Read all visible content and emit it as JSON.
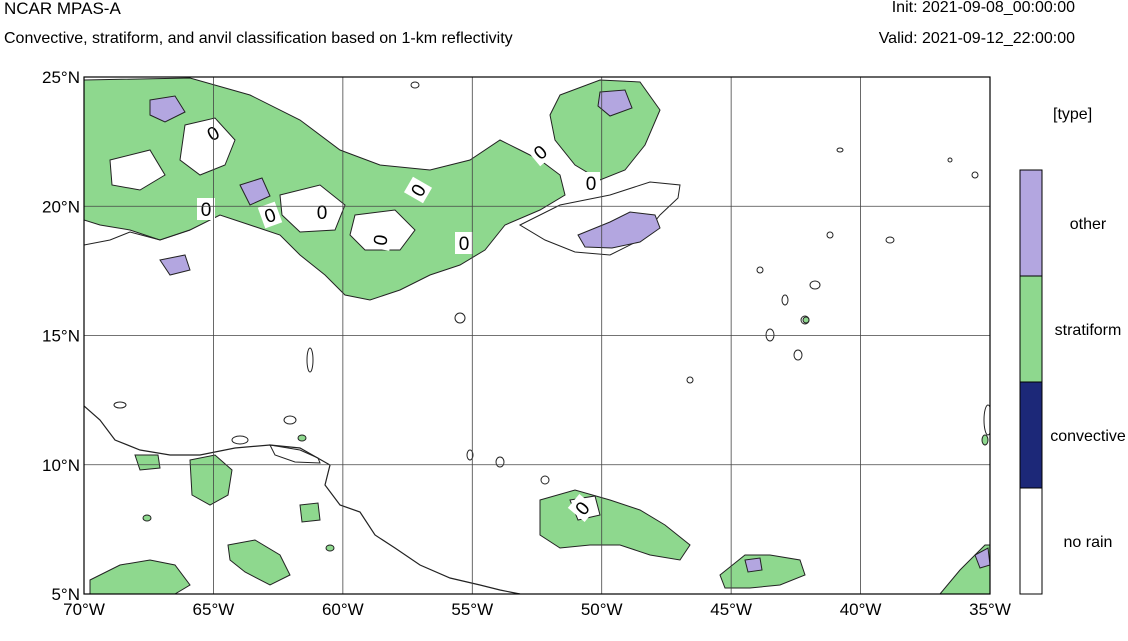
{
  "header": {
    "title": "NCAR MPAS-A",
    "subtitle": "Convective, stratiform, and anvil classification based on 1-km reflectivity",
    "init": "Init: 2021-09-08_00:00:00",
    "valid": "Valid: 2021-09-12_22:00:00"
  },
  "map": {
    "lat_labels": [
      "25°N",
      "20°N",
      "15°N",
      "10°N",
      "5°N"
    ],
    "lon_labels": [
      "70°W",
      "65°W",
      "60°W",
      "55°W",
      "50°W",
      "45°W",
      "40°W",
      "35°W"
    ],
    "lon_range": [
      -70,
      -35
    ],
    "lat_range": [
      5,
      25
    ],
    "gridlines": true,
    "contour_label": "0"
  },
  "legend": {
    "title": "[type]",
    "items": [
      {
        "label": "other",
        "color": "#b3a6e0"
      },
      {
        "label": "stratiform",
        "color": "#8ed88e"
      },
      {
        "label": "convective",
        "color": "#1c2878"
      },
      {
        "label": "no rain",
        "color": "#ffffff"
      }
    ]
  }
}
